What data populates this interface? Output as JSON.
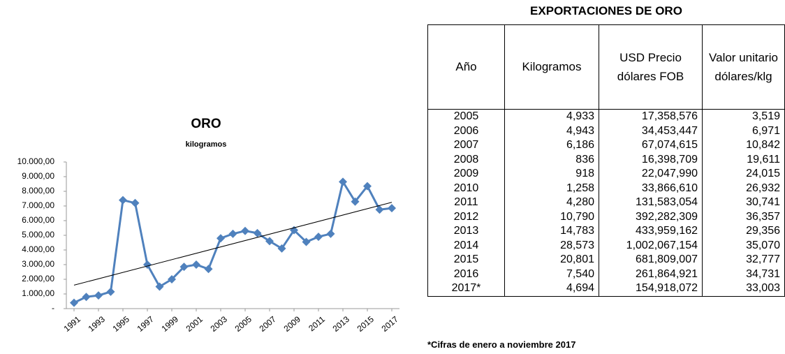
{
  "chart_data": {
    "type": "line",
    "title": "ORO",
    "subtitle": "kilogramos",
    "x": [
      1991,
      1992,
      1993,
      1994,
      1995,
      1996,
      1997,
      1998,
      1999,
      2000,
      2001,
      2002,
      2003,
      2004,
      2005,
      2006,
      2007,
      2008,
      2009,
      2010,
      2011,
      2012,
      2013,
      2014,
      2015,
      2016,
      2017
    ],
    "series": [
      {
        "color": "#4f81bd",
        "values": [
          400,
          800,
          900,
          1150,
          7400,
          7200,
          3000,
          1500,
          2000,
          2850,
          3000,
          2700,
          4800,
          5100,
          5300,
          5150,
          4600,
          4100,
          5350,
          4550,
          4900,
          5100,
          8650,
          7300,
          8350,
          6750,
          6850
        ]
      }
    ],
    "trend": {
      "color": "#000000",
      "values": [
        1600,
        7250
      ]
    },
    "xlim": [
      1991,
      2017
    ],
    "xticks": [
      1991,
      1993,
      1995,
      1997,
      1999,
      2001,
      2003,
      2005,
      2007,
      2009,
      2011,
      2013,
      2015,
      2017
    ],
    "ylim": [
      0,
      10000
    ],
    "yticks": [
      {
        "value": 0,
        "label": "-"
      },
      {
        "value": 1000,
        "label": "1.000,00"
      },
      {
        "value": 2000,
        "label": "2.000,00"
      },
      {
        "value": 3000,
        "label": "3.000,00"
      },
      {
        "value": 4000,
        "label": "4.000,00"
      },
      {
        "value": 5000,
        "label": "5.000,00"
      },
      {
        "value": 6000,
        "label": "6.000,00"
      },
      {
        "value": 7000,
        "label": "7.000,00"
      },
      {
        "value": 8000,
        "label": "8.000,00"
      },
      {
        "value": 9000,
        "label": "9.000,00"
      },
      {
        "value": 10000,
        "label": "10.000,00"
      }
    ]
  },
  "table": {
    "title": "EXPORTACIONES DE ORO",
    "header": [
      "Año",
      "Kilogramos",
      "USD Precio dólares FOB",
      "Valor unitario dólares/klg"
    ],
    "rows": [
      [
        "2005",
        "4,933",
        "17,358,576",
        "3,519"
      ],
      [
        "2006",
        "4,943",
        "34,453,447",
        "6,971"
      ],
      [
        "2007",
        "6,186",
        "67,074,615",
        "10,842"
      ],
      [
        "2008",
        "836",
        "16,398,709",
        "19,611"
      ],
      [
        "2009",
        "918",
        "22,047,990",
        "24,015"
      ],
      [
        "2010",
        "1,258",
        "33,866,610",
        "26,932"
      ],
      [
        "2011",
        "4,280",
        "131,583,054",
        "30,741"
      ],
      [
        "2012",
        "10,790",
        "392,282,309",
        "36,357"
      ],
      [
        "2013",
        "14,783",
        "433,959,162",
        "29,356"
      ],
      [
        "2014",
        "28,573",
        "1,002,067,154",
        "35,070"
      ],
      [
        "2015",
        "20,801",
        "681,809,007",
        "32,777"
      ],
      [
        "2016",
        "7,540",
        "261,864,921",
        "34,731"
      ],
      [
        "2017*",
        "4,694",
        "154,918,072",
        "33,003"
      ]
    ],
    "footnote": "*Cifras de enero a noviembre 2017"
  }
}
